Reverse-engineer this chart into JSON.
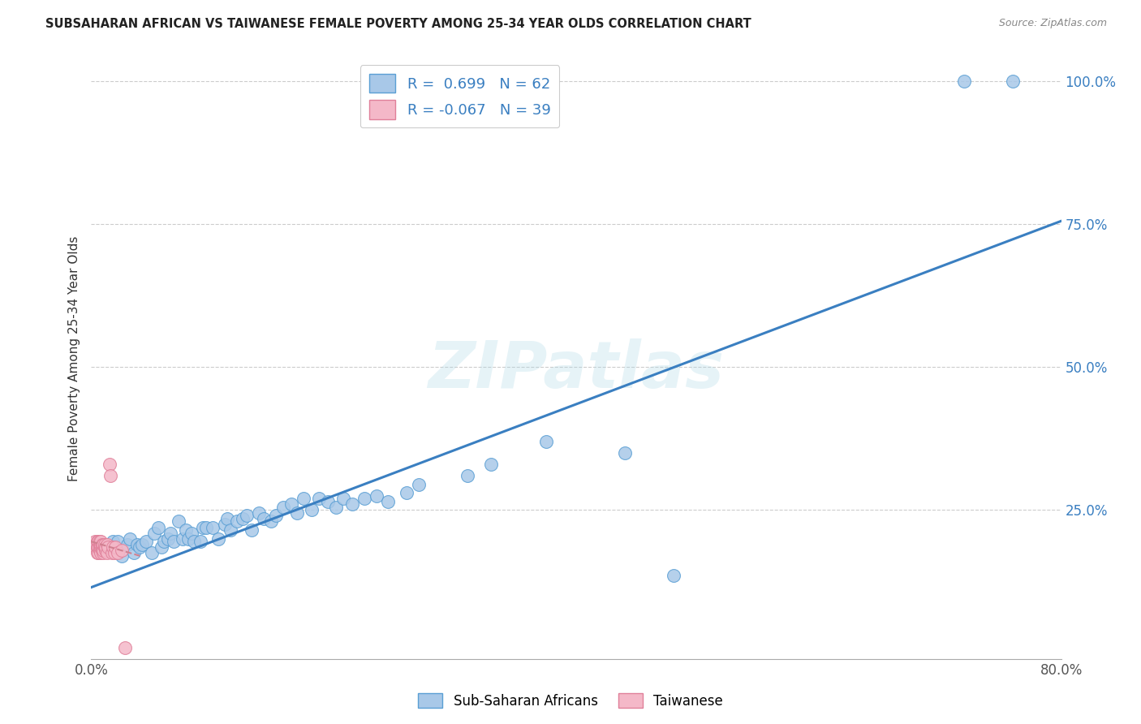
{
  "title": "SUBSAHARAN AFRICAN VS TAIWANESE FEMALE POVERTY AMONG 25-34 YEAR OLDS CORRELATION CHART",
  "source": "Source: ZipAtlas.com",
  "ylabel": "Female Poverty Among 25-34 Year Olds",
  "xlim": [
    0,
    0.8
  ],
  "ylim": [
    -0.01,
    1.04
  ],
  "ytick_positions": [
    0.0,
    0.25,
    0.5,
    0.75,
    1.0
  ],
  "ytick_labels": [
    "",
    "25.0%",
    "50.0%",
    "75.0%",
    "100.0%"
  ],
  "blue_R": 0.699,
  "blue_N": 62,
  "pink_R": -0.067,
  "pink_N": 39,
  "blue_color": "#a8c8e8",
  "blue_edge_color": "#5a9fd4",
  "blue_line_color": "#3a7fc1",
  "pink_color": "#f4b8c8",
  "pink_edge_color": "#e0809a",
  "pink_line_color": "#d08090",
  "watermark": "ZIPatlas",
  "legend_label_blue": "Sub-Saharan Africans",
  "legend_label_pink": "Taiwanese",
  "blue_scatter_x": [
    0.018,
    0.022,
    0.025,
    0.03,
    0.032,
    0.035,
    0.038,
    0.04,
    0.042,
    0.045,
    0.05,
    0.052,
    0.055,
    0.058,
    0.06,
    0.063,
    0.065,
    0.068,
    0.072,
    0.075,
    0.078,
    0.08,
    0.083,
    0.085,
    0.09,
    0.092,
    0.095,
    0.1,
    0.105,
    0.11,
    0.112,
    0.115,
    0.12,
    0.125,
    0.128,
    0.132,
    0.138,
    0.142,
    0.148,
    0.152,
    0.158,
    0.165,
    0.17,
    0.175,
    0.182,
    0.188,
    0.195,
    0.202,
    0.208,
    0.215,
    0.225,
    0.235,
    0.245,
    0.26,
    0.27,
    0.31,
    0.33,
    0.375,
    0.44,
    0.48,
    0.72,
    0.76
  ],
  "blue_scatter_y": [
    0.195,
    0.195,
    0.17,
    0.19,
    0.2,
    0.175,
    0.19,
    0.185,
    0.19,
    0.195,
    0.175,
    0.21,
    0.22,
    0.185,
    0.195,
    0.2,
    0.21,
    0.195,
    0.23,
    0.2,
    0.215,
    0.2,
    0.21,
    0.195,
    0.195,
    0.22,
    0.22,
    0.22,
    0.2,
    0.225,
    0.235,
    0.215,
    0.23,
    0.235,
    0.24,
    0.215,
    0.245,
    0.235,
    0.23,
    0.24,
    0.255,
    0.26,
    0.245,
    0.27,
    0.25,
    0.27,
    0.265,
    0.255,
    0.27,
    0.26,
    0.27,
    0.275,
    0.265,
    0.28,
    0.295,
    0.31,
    0.33,
    0.37,
    0.35,
    0.135,
    1.0,
    1.0
  ],
  "pink_scatter_x": [
    0.003,
    0.004,
    0.004,
    0.005,
    0.005,
    0.005,
    0.006,
    0.006,
    0.006,
    0.007,
    0.007,
    0.007,
    0.007,
    0.008,
    0.008,
    0.008,
    0.008,
    0.009,
    0.009,
    0.009,
    0.01,
    0.01,
    0.01,
    0.011,
    0.011,
    0.012,
    0.012,
    0.013,
    0.013,
    0.014,
    0.015,
    0.016,
    0.017,
    0.018,
    0.019,
    0.02,
    0.022,
    0.025,
    0.028
  ],
  "pink_scatter_y": [
    0.195,
    0.185,
    0.19,
    0.175,
    0.185,
    0.195,
    0.175,
    0.185,
    0.195,
    0.18,
    0.185,
    0.19,
    0.195,
    0.175,
    0.185,
    0.19,
    0.195,
    0.18,
    0.185,
    0.19,
    0.175,
    0.18,
    0.19,
    0.185,
    0.19,
    0.18,
    0.185,
    0.175,
    0.19,
    0.185,
    0.33,
    0.31,
    0.175,
    0.185,
    0.175,
    0.185,
    0.175,
    0.18,
    0.01
  ],
  "blue_line_x": [
    0.0,
    0.8
  ],
  "blue_line_y": [
    0.115,
    0.755
  ],
  "pink_line_x": [
    0.0,
    0.04
  ],
  "pink_line_y": [
    0.195,
    0.17
  ]
}
